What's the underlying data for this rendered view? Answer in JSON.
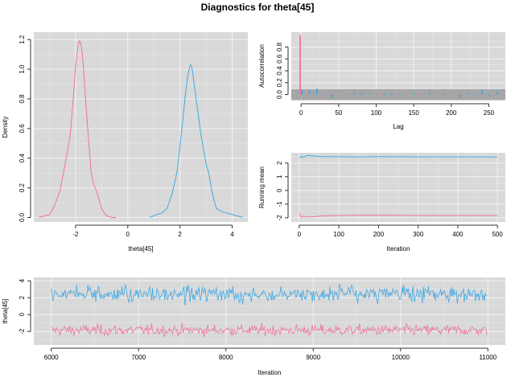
{
  "title": "Diagnostics for theta[45]",
  "colors": {
    "chain1": "#f0749c",
    "chain2": "#3fa9e6",
    "band": "#a6a6a6",
    "panel": "#d9d9d9"
  },
  "chart_data": [
    {
      "id": "density",
      "type": "line",
      "xlabel": "theta[45]",
      "ylabel": "Density",
      "xlim": [
        -3.6,
        4.6
      ],
      "ylim": [
        -0.03,
        1.25
      ],
      "xticks": [
        -2,
        0,
        2,
        4
      ],
      "yticks": [
        0.0,
        0.2,
        0.4,
        0.6,
        0.8,
        1.0,
        1.2
      ],
      "series": [
        {
          "x": [
            -3.4,
            -3.2,
            -3.0,
            -2.8,
            -2.6,
            -2.4,
            -2.3,
            -2.2,
            -2.1,
            -2.0,
            -1.95,
            -1.9,
            -1.85,
            -1.8,
            -1.75,
            -1.7,
            -1.6,
            -1.5,
            -1.4,
            -1.3,
            -1.2,
            -1.1,
            -1.0,
            -0.9,
            -0.8,
            -0.6,
            -0.45
          ],
          "y": [
            0.0,
            0.01,
            0.02,
            0.08,
            0.18,
            0.36,
            0.46,
            0.56,
            0.78,
            1.02,
            1.1,
            1.16,
            1.19,
            1.18,
            1.12,
            1.02,
            0.76,
            0.52,
            0.3,
            0.22,
            0.18,
            0.12,
            0.06,
            0.03,
            0.01,
            0.0,
            0.0
          ]
        },
        {
          "x": [
            0.85,
            1.1,
            1.3,
            1.5,
            1.7,
            1.8,
            1.9,
            2.0,
            2.1,
            2.2,
            2.3,
            2.4,
            2.45,
            2.5,
            2.6,
            2.7,
            2.8,
            2.9,
            3.0,
            3.1,
            3.2,
            3.3,
            3.4,
            3.6,
            3.8,
            4.0,
            4.2,
            4.4
          ],
          "y": [
            0.0,
            0.02,
            0.03,
            0.06,
            0.16,
            0.24,
            0.32,
            0.48,
            0.64,
            0.82,
            0.96,
            1.03,
            1.02,
            0.96,
            0.82,
            0.7,
            0.56,
            0.46,
            0.36,
            0.3,
            0.2,
            0.12,
            0.06,
            0.04,
            0.03,
            0.02,
            0.01,
            0.0
          ]
        }
      ]
    },
    {
      "id": "autocorrelation",
      "type": "bar",
      "xlabel": "Lag",
      "ylabel": "Autocorrelation",
      "xlim": [
        -13,
        272
      ],
      "ylim": [
        -0.1,
        1.05
      ],
      "xticks": [
        0,
        50,
        100,
        150,
        200,
        250
      ],
      "yticks": [
        0.0,
        0.2,
        0.4,
        0.6,
        0.8
      ],
      "band": [
        -0.09,
        0.09
      ],
      "lags": [
        0,
        10,
        20,
        30,
        40,
        50,
        60,
        70,
        80,
        90,
        100,
        110,
        120,
        130,
        140,
        150,
        160,
        170,
        180,
        190,
        200,
        210,
        220,
        230,
        240,
        250,
        260
      ],
      "series": [
        {
          "values": [
            1.0,
            0.01,
            0.0,
            0.01,
            -0.01,
            0.0,
            0.01,
            0.0,
            0.01,
            0.0,
            0.0,
            0.01,
            0.0,
            -0.01,
            0.0,
            0.0,
            0.01,
            0.0,
            0.0,
            -0.01,
            0.0,
            -0.02,
            0.0,
            0.0,
            -0.01,
            0.0,
            0.01
          ]
        },
        {
          "values": [
            0.08,
            0.06,
            0.1,
            -0.01,
            -0.05,
            0.0,
            0.02,
            0.03,
            0.03,
            0.02,
            -0.01,
            0.02,
            0.02,
            -0.01,
            0.0,
            0.02,
            0.01,
            0.03,
            0.0,
            0.02,
            0.0,
            -0.05,
            0.02,
            0.01,
            0.08,
            -0.02,
            0.04
          ]
        }
      ]
    },
    {
      "id": "running-mean",
      "type": "line",
      "xlabel": "Iteration",
      "ylabel": "Running mean",
      "xlim": [
        -20,
        520
      ],
      "ylim": [
        -2.3,
        2.75
      ],
      "xticks": [
        0,
        100,
        200,
        300,
        400,
        500
      ],
      "yticks": [
        -2,
        -1,
        0,
        1,
        2
      ],
      "series": [
        {
          "x": [
            1,
            5,
            10,
            20,
            40,
            60,
            100,
            150,
            200,
            300,
            400,
            500
          ],
          "y": [
            -1.65,
            -1.98,
            -1.88,
            -1.95,
            -1.9,
            -1.85,
            -1.82,
            -1.81,
            -1.81,
            -1.82,
            -1.82,
            -1.82
          ]
        },
        {
          "x": [
            1,
            5,
            10,
            20,
            40,
            60,
            100,
            150,
            200,
            300,
            400,
            500
          ],
          "y": [
            2.35,
            2.5,
            2.42,
            2.55,
            2.5,
            2.47,
            2.47,
            2.45,
            2.47,
            2.46,
            2.46,
            2.45
          ]
        }
      ]
    },
    {
      "id": "trace",
      "type": "line",
      "xlabel": "Iteration",
      "ylabel": "theta[45]",
      "xlim": [
        5800,
        11200
      ],
      "ylim": [
        -3.6,
        4.4
      ],
      "xticks": [
        6000,
        7000,
        8000,
        9000,
        10000,
        11000
      ],
      "yticks": [
        -2,
        0,
        2,
        4
      ],
      "series": [
        {
          "x_start": 6000,
          "x_end": 10990,
          "mean": -1.85,
          "sd": 0.32
        },
        {
          "x_start": 6000,
          "x_end": 10990,
          "mean": 2.45,
          "sd": 0.45
        }
      ]
    }
  ]
}
